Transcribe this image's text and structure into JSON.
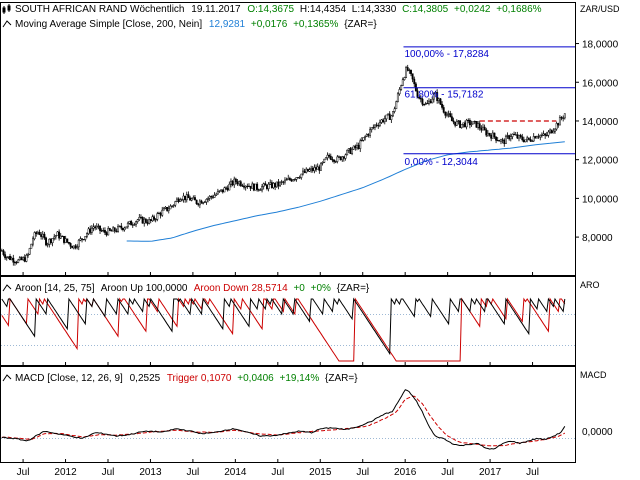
{
  "header": {
    "instrument": "SOUTH AFRICAN RAND Wöchentlich",
    "date": "19.11.2017",
    "o": "O:14,3675",
    "h": "H:14,4354",
    "l": "L:14,3330",
    "c": "C:14,3805",
    "change": "+0,0242",
    "change_pct": "+0,1686%",
    "currency": "ZAR/USD"
  },
  "ma_legend": {
    "label": "Moving Average Simple [Close, 200, Nein]",
    "value": "12,9281",
    "change": "+0,0176",
    "change_pct": "+0,1365%",
    "unit": "{ZAR=}"
  },
  "fib_labels": {
    "l100": "100,00% - 17,8284",
    "l618": "61,80% - 15,7182",
    "l0": "0,00% - 12,3044"
  },
  "aroon_legend": {
    "label": "Aroon [14, 25, 75]",
    "up": "Aroon Up 100,0000",
    "down": "Aroon Down 28,5714",
    "change": "+0",
    "change_pct": "+0%",
    "unit": "{ZAR=}",
    "axis": "ARO"
  },
  "macd_legend": {
    "label": "MACD [Close, 12, 26, 9]",
    "value": "0,2525",
    "trigger": "Trigger 0,1070",
    "change": "+0,0406",
    "change_pct": "+19,14%",
    "unit": "{ZAR=}",
    "axis": "MACD",
    "zero": "0,0000"
  },
  "colors": {
    "candle": "#000000",
    "ma": "#1f7fd6",
    "fib": "#0000cc",
    "resistance": "#cc0000",
    "aroon_up": "#000000",
    "aroon_down": "#cc0000",
    "macd": "#000000",
    "trigger": "#cc0000",
    "grid": "#7fa3c8",
    "green": "#008000"
  },
  "chart_data": [
    {
      "type": "candlestick",
      "title": "SOUTH AFRICAN RAND Wöchentlich",
      "ylabel": "ZAR/USD",
      "ylim": [
        6.3,
        18.7
      ],
      "yticks": [
        8.0,
        10.0,
        12.0,
        14.0,
        16.0,
        18.0
      ],
      "ytick_labels": [
        "8,0000",
        "10,0000",
        "12,0000",
        "14,0000",
        "16,0000",
        "18,0000"
      ],
      "xticks": [
        "Jul",
        "2012",
        "Jul",
        "2013",
        "Jul",
        "2014",
        "Jul",
        "2015",
        "Jul",
        "2016",
        "Jul",
        "2017",
        "Jul"
      ],
      "xtick_pos": [
        2011.5,
        2012.0,
        2012.5,
        2013.0,
        2013.5,
        2014.0,
        2014.5,
        2015.0,
        2015.5,
        2016.0,
        2016.5,
        2017.0,
        2017.5
      ],
      "xlim": [
        2011.24,
        2018.0
      ],
      "close_path": [
        [
          2011.25,
          7.3
        ],
        [
          2011.3,
          7.0
        ],
        [
          2011.45,
          6.75
        ],
        [
          2011.55,
          6.95
        ],
        [
          2011.62,
          8.0
        ],
        [
          2011.68,
          8.3
        ],
        [
          2011.78,
          7.7
        ],
        [
          2011.9,
          8.15
        ],
        [
          2012.0,
          7.8
        ],
        [
          2012.1,
          7.5
        ],
        [
          2012.22,
          8.05
        ],
        [
          2012.33,
          8.55
        ],
        [
          2012.45,
          8.25
        ],
        [
          2012.55,
          8.3
        ],
        [
          2012.72,
          8.6
        ],
        [
          2012.85,
          8.9
        ],
        [
          2013.0,
          8.8
        ],
        [
          2013.1,
          9.2
        ],
        [
          2013.25,
          9.6
        ],
        [
          2013.35,
          10.1
        ],
        [
          2013.45,
          10.0
        ],
        [
          2013.55,
          9.8
        ],
        [
          2013.7,
          10.05
        ],
        [
          2013.85,
          10.4
        ],
        [
          2014.0,
          10.9
        ],
        [
          2014.1,
          10.75
        ],
        [
          2014.25,
          10.55
        ],
        [
          2014.4,
          10.65
        ],
        [
          2014.5,
          10.7
        ],
        [
          2014.58,
          10.85
        ],
        [
          2014.7,
          11.1
        ],
        [
          2014.85,
          11.4
        ],
        [
          2015.0,
          11.6
        ],
        [
          2015.1,
          12.2
        ],
        [
          2015.2,
          12.0
        ],
        [
          2015.33,
          12.4
        ],
        [
          2015.45,
          12.7
        ],
        [
          2015.55,
          13.3
        ],
        [
          2015.65,
          13.8
        ],
        [
          2015.75,
          14.1
        ],
        [
          2015.85,
          14.3
        ],
        [
          2015.92,
          15.4
        ],
        [
          2015.97,
          16.2
        ],
        [
          2016.02,
          16.7
        ],
        [
          2016.08,
          16.2
        ],
        [
          2016.15,
          15.3
        ],
        [
          2016.25,
          14.8
        ],
        [
          2016.35,
          15.4
        ],
        [
          2016.45,
          14.6
        ],
        [
          2016.55,
          14.0
        ],
        [
          2016.65,
          13.8
        ],
        [
          2016.75,
          13.9
        ],
        [
          2016.85,
          13.8
        ],
        [
          2016.95,
          13.4
        ],
        [
          2017.05,
          13.2
        ],
        [
          2017.15,
          12.9
        ],
        [
          2017.25,
          13.3
        ],
        [
          2017.35,
          13.1
        ],
        [
          2017.45,
          13.0
        ],
        [
          2017.55,
          13.3
        ],
        [
          2017.65,
          13.2
        ],
        [
          2017.72,
          13.5
        ],
        [
          2017.8,
          13.9
        ],
        [
          2017.88,
          14.38
        ]
      ],
      "moving_average_200": [
        [
          2012.72,
          7.8
        ],
        [
          2013.0,
          7.78
        ],
        [
          2013.25,
          7.95
        ],
        [
          2013.5,
          8.3
        ],
        [
          2013.75,
          8.6
        ],
        [
          2014.0,
          8.85
        ],
        [
          2014.25,
          9.1
        ],
        [
          2014.5,
          9.3
        ],
        [
          2014.75,
          9.55
        ],
        [
          2015.0,
          9.85
        ],
        [
          2015.25,
          10.2
        ],
        [
          2015.5,
          10.55
        ],
        [
          2015.75,
          11.0
        ],
        [
          2016.0,
          11.5
        ],
        [
          2016.25,
          11.95
        ],
        [
          2016.5,
          12.25
        ],
        [
          2016.75,
          12.4
        ],
        [
          2017.0,
          12.5
        ],
        [
          2017.25,
          12.6
        ],
        [
          2017.5,
          12.75
        ],
        [
          2017.88,
          12.93
        ]
      ],
      "fibonacci": [
        {
          "label": "100,00% - 17,8284",
          "value": 17.8284,
          "x_start": 2015.98
        },
        {
          "label": "61,80% - 15,7182",
          "value": 15.7182,
          "x_start": 2015.98
        },
        {
          "label": "0,00% - 12,3044",
          "value": 12.3044,
          "x_start": 2015.98
        }
      ],
      "resistance_dashed": {
        "value": 14.0,
        "x_start": 2016.88,
        "x_end": 2017.78
      }
    },
    {
      "type": "line",
      "title": "Aroon [14, 25, 75]",
      "ylabel": "ARO",
      "ylim": [
        0,
        100
      ],
      "reference_lines": [
        25,
        75
      ],
      "series": [
        {
          "name": "Aroon Up",
          "last": 100.0
        },
        {
          "name": "Aroon Down",
          "last": 28.5714
        }
      ]
    },
    {
      "type": "line",
      "title": "MACD [Close, 12, 26, 9]",
      "ylabel": "MACD",
      "ylim": [
        -0.4,
        1.2
      ],
      "yticks": [
        0.0
      ],
      "ytick_labels": [
        "0,0000"
      ],
      "series": [
        {
          "name": "MACD",
          "last": 0.2525,
          "points": [
            [
              2011.25,
              0.02
            ],
            [
              2011.4,
              0.0
            ],
            [
              2011.55,
              -0.05
            ],
            [
              2011.65,
              0.05
            ],
            [
              2011.75,
              0.15
            ],
            [
              2011.9,
              0.1
            ],
            [
              2012.05,
              0.05
            ],
            [
              2012.2,
              0.0
            ],
            [
              2012.35,
              0.12
            ],
            [
              2012.45,
              0.1
            ],
            [
              2012.6,
              0.05
            ],
            [
              2012.75,
              0.08
            ],
            [
              2012.9,
              0.14
            ],
            [
              2013.0,
              0.15
            ],
            [
              2013.15,
              0.13
            ],
            [
              2013.3,
              0.2
            ],
            [
              2013.45,
              0.16
            ],
            [
              2013.6,
              0.1
            ],
            [
              2013.75,
              0.12
            ],
            [
              2013.9,
              0.18
            ],
            [
              2014.0,
              0.2
            ],
            [
              2014.15,
              0.12
            ],
            [
              2014.3,
              0.05
            ],
            [
              2014.45,
              0.06
            ],
            [
              2014.6,
              0.1
            ],
            [
              2014.75,
              0.15
            ],
            [
              2014.9,
              0.12
            ],
            [
              2015.0,
              0.2
            ],
            [
              2015.15,
              0.22
            ],
            [
              2015.3,
              0.18
            ],
            [
              2015.45,
              0.25
            ],
            [
              2015.6,
              0.35
            ],
            [
              2015.75,
              0.5
            ],
            [
              2015.85,
              0.55
            ],
            [
              2015.95,
              0.85
            ],
            [
              2016.0,
              1.0
            ],
            [
              2016.05,
              0.95
            ],
            [
              2016.12,
              0.8
            ],
            [
              2016.2,
              0.55
            ],
            [
              2016.28,
              0.25
            ],
            [
              2016.35,
              0.05
            ],
            [
              2016.45,
              0.0
            ],
            [
              2016.55,
              -0.1
            ],
            [
              2016.65,
              -0.15
            ],
            [
              2016.75,
              -0.12
            ],
            [
              2016.85,
              -0.1
            ],
            [
              2016.95,
              -0.2
            ],
            [
              2017.05,
              -0.22
            ],
            [
              2017.15,
              -0.1
            ],
            [
              2017.25,
              -0.05
            ],
            [
              2017.35,
              -0.1
            ],
            [
              2017.45,
              -0.05
            ],
            [
              2017.55,
              0.0
            ],
            [
              2017.65,
              -0.02
            ],
            [
              2017.75,
              0.05
            ],
            [
              2017.83,
              0.12
            ],
            [
              2017.88,
              0.25
            ]
          ]
        },
        {
          "name": "Trigger",
          "last": 0.107,
          "points": [
            [
              2011.25,
              0.03
            ],
            [
              2011.45,
              0.01
            ],
            [
              2011.6,
              -0.02
            ],
            [
              2011.75,
              0.1
            ],
            [
              2011.95,
              0.1
            ],
            [
              2012.2,
              0.03
            ],
            [
              2012.4,
              0.08
            ],
            [
              2012.6,
              0.07
            ],
            [
              2012.85,
              0.1
            ],
            [
              2013.05,
              0.14
            ],
            [
              2013.3,
              0.17
            ],
            [
              2013.55,
              0.13
            ],
            [
              2013.8,
              0.13
            ],
            [
              2014.0,
              0.17
            ],
            [
              2014.25,
              0.1
            ],
            [
              2014.5,
              0.07
            ],
            [
              2014.75,
              0.12
            ],
            [
              2015.0,
              0.16
            ],
            [
              2015.3,
              0.2
            ],
            [
              2015.55,
              0.25
            ],
            [
              2015.75,
              0.4
            ],
            [
              2015.9,
              0.55
            ],
            [
              2016.0,
              0.8
            ],
            [
              2016.1,
              0.88
            ],
            [
              2016.2,
              0.72
            ],
            [
              2016.3,
              0.45
            ],
            [
              2016.4,
              0.22
            ],
            [
              2016.5,
              0.05
            ],
            [
              2016.65,
              -0.08
            ],
            [
              2016.85,
              -0.12
            ],
            [
              2017.0,
              -0.15
            ],
            [
              2017.15,
              -0.15
            ],
            [
              2017.3,
              -0.1
            ],
            [
              2017.5,
              -0.06
            ],
            [
              2017.65,
              -0.02
            ],
            [
              2017.8,
              0.04
            ],
            [
              2017.88,
              0.107
            ]
          ]
        }
      ]
    }
  ]
}
